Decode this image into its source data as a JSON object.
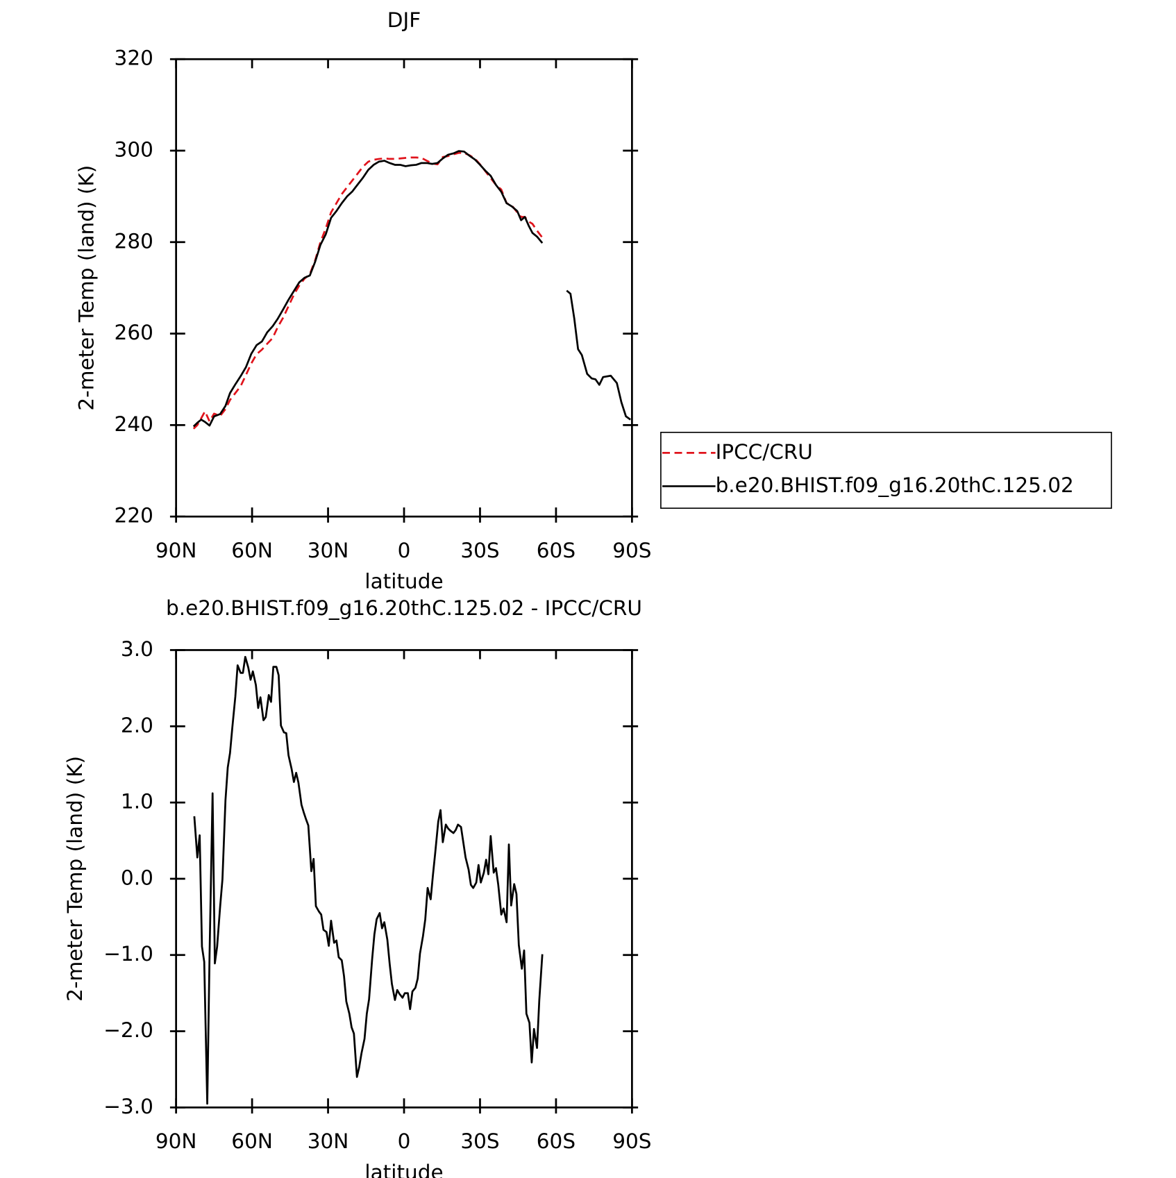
{
  "chart_data": [
    {
      "type": "line",
      "title": "DJF",
      "xlabel": "latitude",
      "ylabel": "2-meter Temp (land) (K)",
      "xlim": [
        90,
        -90
      ],
      "xticks": [
        {
          "value": 90,
          "label": "90N"
        },
        {
          "value": 60,
          "label": "60N"
        },
        {
          "value": 30,
          "label": "30N"
        },
        0,
        {
          "value": -30,
          "label": "30S"
        },
        {
          "value": -60,
          "label": "60S"
        },
        {
          "value": -90,
          "label": "90S"
        }
      ],
      "ylim": [
        220,
        320
      ],
      "yticks": [
        220,
        240,
        260,
        280,
        300,
        320
      ],
      "legend": "right",
      "x": [
        83.1,
        81.6,
        80.1,
        78.6,
        76.8,
        75,
        72.6,
        70.5,
        68.7,
        66.6,
        64.5,
        62.4,
        60.3,
        58.2,
        56.1,
        54,
        51.9,
        49.8,
        47.7,
        45.6,
        43.5,
        41.4,
        39.3,
        37.2,
        35.1,
        33,
        30.9,
        28.8,
        26.7,
        24.6,
        22.5,
        20.4,
        18.3,
        16.2,
        14.1,
        12,
        9.9,
        7.8,
        5.7,
        3.6,
        1.5,
        -0.6,
        -2.7,
        -4.8,
        -6.9,
        -9,
        -11.1,
        -13.2,
        -15.3,
        -17.4,
        -19.5,
        -21.6,
        -23.7,
        -25.8,
        -27.9,
        -30,
        -32.1,
        -34.2,
        -36.3,
        -38.4,
        -40.5,
        -42.6,
        -44.7,
        -46.2,
        -47.7,
        -49.2,
        -50.7,
        -52.5,
        -54.6,
        -59.4,
        -64.2,
        -65.7,
        -67.2,
        -68.7,
        -70.2,
        -72.3,
        -74.1,
        -75.6,
        -77.1,
        -78.6,
        -81.6,
        -84,
        -85.8,
        -87.6,
        -89.4
      ],
      "series": [
        {
          "name": "IPCC/CRU",
          "color": "#e0141c",
          "dash": true,
          "values": [
            239.2,
            240,
            241.5,
            243,
            240.8,
            242.5,
            242,
            243.5,
            245.5,
            247,
            248.5,
            251,
            253.5,
            255.5,
            256.5,
            257.8,
            259,
            261.5,
            263.5,
            266,
            268.5,
            270.5,
            272,
            273,
            276,
            280,
            283,
            286.5,
            288.5,
            290.5,
            292,
            293.5,
            295,
            296.5,
            297.6,
            298,
            298.2,
            298.3,
            298.2,
            298.2,
            298.3,
            298.4,
            298.5,
            298.5,
            298.4,
            297.8,
            297.2,
            297,
            298.6,
            298.8,
            299.2,
            299.5,
            299.5,
            299,
            298.3,
            297,
            295.5,
            294,
            292.5,
            291.5,
            288.5,
            288,
            286.5,
            285.5,
            285.5,
            284.5,
            284,
            282.5,
            281,
            null,
            null,
            null,
            null,
            null,
            null,
            null,
            null,
            null,
            null,
            null,
            null,
            null,
            null,
            null,
            null
          ]
        },
        {
          "name": "b.e20.BHIST.f09_g16.20thC.125.02",
          "color": "#000000",
          "dash": false,
          "values": [
            239.7,
            240.5,
            241.2,
            240.7,
            239.9,
            241.9,
            242.4,
            244.2,
            247.0,
            248.9,
            250.7,
            252.7,
            255.6,
            257.5,
            258.3,
            260.3,
            261.6,
            263.3,
            265.3,
            267.4,
            269.3,
            271.2,
            272.2,
            272.7,
            275.7,
            279.4,
            281.7,
            285.3,
            286.8,
            288.5,
            290.0,
            291.1,
            292.6,
            294.1,
            295.8,
            296.9,
            297.6,
            297.8,
            297.3,
            296.9,
            296.9,
            296.6,
            296.8,
            296.9,
            297.3,
            297.3,
            297.1,
            297.3,
            298.3,
            299.1,
            299.4,
            299.9,
            299.8,
            298.9,
            298.1,
            296.9,
            295.6,
            294.5,
            292.5,
            291.0,
            288.5,
            287.8,
            286.8,
            284.8,
            285.5,
            283.6,
            282.0,
            281.2,
            279.8,
            null,
            269.4,
            268.7,
            263.3,
            256.6,
            255.3,
            251.2,
            250.2,
            250.0,
            248.8,
            250.5,
            250.8,
            249.2,
            245.0,
            241.9,
            241.2
          ]
        }
      ]
    },
    {
      "type": "line",
      "title": "b.e20.BHIST.f09_g16.20thC.125.02 - IPCC/CRU",
      "xlabel": "latitude",
      "ylabel": "2-meter Temp (land) (K)",
      "xlim": [
        90,
        -90
      ],
      "xticks": [
        {
          "value": 90,
          "label": "90N"
        },
        {
          "value": 60,
          "label": "60N"
        },
        {
          "value": 30,
          "label": "30N"
        },
        0,
        {
          "value": -30,
          "label": "30S"
        },
        {
          "value": -60,
          "label": "60S"
        },
        {
          "value": -90,
          "label": "90S"
        }
      ],
      "ylim": [
        -3,
        3
      ],
      "yticks": [
        {
          "value": -3,
          "label": "−3.0"
        },
        {
          "value": -2,
          "label": "−2.0"
        },
        {
          "value": -1,
          "label": "−1.0"
        },
        {
          "value": 0,
          "label": "0.0"
        },
        {
          "value": 1,
          "label": "1.0"
        },
        {
          "value": 2,
          "label": "2.0"
        },
        {
          "value": 3,
          "label": "3.0"
        }
      ],
      "x": [
        82.8,
        81.6,
        80.7,
        79.8,
        78.9,
        77.7,
        76.8,
        75.6,
        74.7,
        73.8,
        72.6,
        71.7,
        70.5,
        69.6,
        68.7,
        67.8,
        66.6,
        65.7,
        64.5,
        63.6,
        62.7,
        61.5,
        60.6,
        59.7,
        58.5,
        57.6,
        56.7,
        55.5,
        54.6,
        53.4,
        52.5,
        51.6,
        50.4,
        49.5,
        48.6,
        47.4,
        46.5,
        45.6,
        44.4,
        43.5,
        42.6,
        41.7,
        40.5,
        39.6,
        38.7,
        37.8,
        36.6,
        35.7,
        34.8,
        33.6,
        32.7,
        31.8,
        30.6,
        29.7,
        28.8,
        27.6,
        26.7,
        25.8,
        24.6,
        23.7,
        22.8,
        21.6,
        20.7,
        19.8,
        18.6,
        17.7,
        16.8,
        15.6,
        14.7,
        13.8,
        12.6,
        11.7,
        10.8,
        9.6,
        8.7,
        7.8,
        6.6,
        5.7,
        4.8,
        3.6,
        2.7,
        1.8,
        0.6,
        -0.3,
        -1.5,
        -2.4,
        -3.3,
        -4.5,
        -5.4,
        -6.3,
        -7.5,
        -8.4,
        -9.3,
        -10.5,
        -11.4,
        -12.3,
        -13.5,
        -14.4,
        -15.3,
        -16.5,
        -17.4,
        -18.3,
        -19.5,
        -20.4,
        -21.3,
        -22.5,
        -23.4,
        -24.3,
        -25.5,
        -26.4,
        -27.3,
        -28.5,
        -29.4,
        -30.3,
        -31.5,
        -32.4,
        -33.3,
        -34.2,
        -35.4,
        -36.3,
        -37.2,
        -38.4,
        -39.3,
        -40.5,
        -41.4,
        -42.3,
        -43.5,
        -44.4,
        -45.3,
        -46.5,
        -47.4,
        -48.3,
        -49.5,
        -50.4,
        -51.3,
        -52.5,
        -53.4,
        -54.6
      ],
      "series": [
        {
          "color": "#000000",
          "dash": false,
          "values": [
            0.82,
            0.28,
            0.57,
            -0.89,
            -1.09,
            -2.95,
            -1.01,
            1.12,
            -1.11,
            -0.89,
            -0.36,
            -0.01,
            1.03,
            1.46,
            1.65,
            1.98,
            2.39,
            2.8,
            2.7,
            2.7,
            2.91,
            2.77,
            2.61,
            2.72,
            2.54,
            2.24,
            2.38,
            2.08,
            2.12,
            2.41,
            2.32,
            2.78,
            2.78,
            2.67,
            2.01,
            1.92,
            1.91,
            1.62,
            1.44,
            1.27,
            1.39,
            1.26,
            0.97,
            0.87,
            0.78,
            0.7,
            0.1,
            0.26,
            -0.36,
            -0.43,
            -0.47,
            -0.67,
            -0.7,
            -0.88,
            -0.55,
            -0.84,
            -0.81,
            -1.03,
            -1.07,
            -1.28,
            -1.61,
            -1.77,
            -1.95,
            -2.03,
            -2.6,
            -2.47,
            -2.29,
            -2.1,
            -1.77,
            -1.58,
            -1.06,
            -0.73,
            -0.53,
            -0.45,
            -0.65,
            -0.57,
            -0.8,
            -1.11,
            -1.38,
            -1.59,
            -1.46,
            -1.51,
            -1.56,
            -1.5,
            -1.5,
            -1.71,
            -1.48,
            -1.43,
            -1.31,
            -0.98,
            -0.75,
            -0.53,
            -0.12,
            -0.27,
            0.05,
            0.34,
            0.75,
            0.9,
            0.48,
            0.71,
            0.66,
            0.63,
            0.6,
            0.64,
            0.71,
            0.68,
            0.48,
            0.28,
            0.12,
            -0.08,
            -0.12,
            -0.05,
            0.18,
            -0.05,
            0.08,
            0.25,
            0.06,
            0.56,
            0.08,
            0.14,
            -0.08,
            -0.47,
            -0.39,
            -0.57,
            0.45,
            -0.35,
            -0.07,
            -0.2,
            -0.87,
            -1.18,
            -0.94,
            -1.77,
            -1.89,
            -2.41,
            -1.97,
            -2.22,
            -1.59,
            -0.99
          ]
        }
      ]
    }
  ]
}
